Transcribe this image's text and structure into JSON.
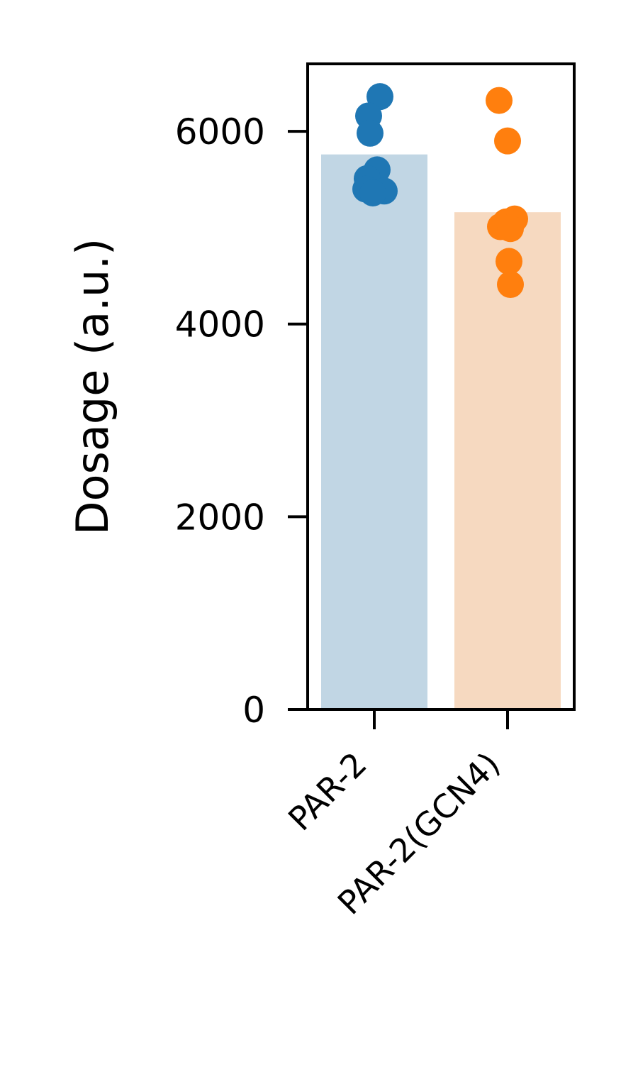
{
  "chart_data": {
    "type": "bar",
    "title": "",
    "xlabel": "",
    "ylabel": "Dosage (a.u.)",
    "ylim": [
      0,
      6700
    ],
    "yticks": [
      0,
      2000,
      4000,
      6000
    ],
    "ytick_labels": [
      "0",
      "2000",
      "4000",
      "6000"
    ],
    "categories": [
      "PAR-2",
      "PAR-2(GCN4)"
    ],
    "values": [
      5760,
      5160
    ],
    "bar_colors": [
      "#c1d6e4",
      "#f6d9c0"
    ],
    "point_colors": [
      "#1f77b4",
      "#ff7f0e"
    ],
    "points": [
      [
        6360,
        6160,
        5980,
        5600,
        5510,
        5400,
        5380,
        5360
      ],
      [
        6320,
        5900,
        5090,
        5060,
        5010,
        4990,
        4650,
        4410
      ]
    ],
    "grid": false,
    "legend": false
  }
}
